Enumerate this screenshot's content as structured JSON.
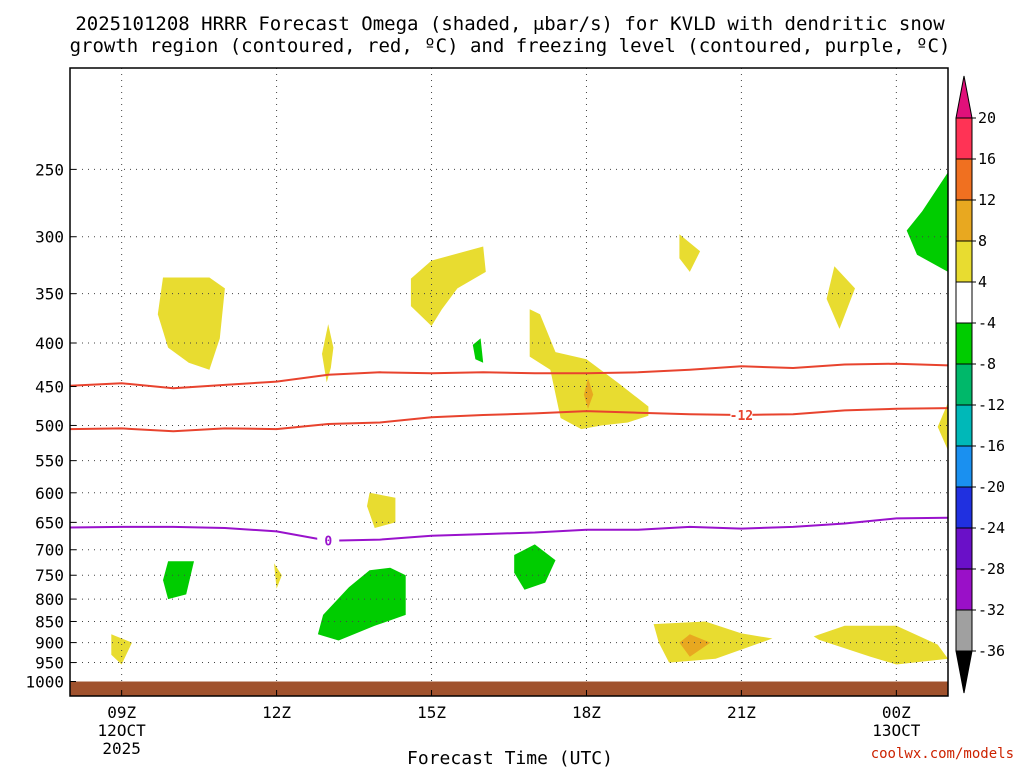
{
  "chart_data": {
    "type": "time-height contour",
    "title_line1": "2025101208 HRRR Forecast Omega (shaded, μbar/s) for KVLD with dendritic snow",
    "title_line2": "growth region (contoured, red, ºC) and freezing level (contoured, purple, ºC)",
    "xlabel": "Forecast Time (UTC)",
    "credit": "coolwx.com/models",
    "x_ticks": [
      {
        "label": "09Z",
        "sub": [
          "12OCT",
          "2025"
        ],
        "hour": 9
      },
      {
        "label": "12Z",
        "sub": [],
        "hour": 12
      },
      {
        "label": "15Z",
        "sub": [],
        "hour": 15
      },
      {
        "label": "18Z",
        "sub": [],
        "hour": 18
      },
      {
        "label": "21Z",
        "sub": [],
        "hour": 21
      },
      {
        "label": "00Z",
        "sub": [
          "13OCT"
        ],
        "hour": 24
      }
    ],
    "xlim_hours": [
      8.0,
      25.0
    ],
    "y_ticks": [
      {
        "label": "250",
        "p": 250
      },
      {
        "label": "300",
        "p": 300
      },
      {
        "label": "350",
        "p": 350
      },
      {
        "label": "400",
        "p": 400
      },
      {
        "label": "450",
        "p": 450
      },
      {
        "label": "500",
        "p": 500
      },
      {
        "label": "550",
        "p": 550
      },
      {
        "label": "600",
        "p": 600
      },
      {
        "label": "650",
        "p": 650
      },
      {
        "label": "700",
        "p": 700
      },
      {
        "label": "750",
        "p": 750
      },
      {
        "label": "800",
        "p": 800
      },
      {
        "label": "850",
        "p": 850
      },
      {
        "label": "900",
        "p": 900
      },
      {
        "label": "950",
        "p": 950
      },
      {
        "label": "1000",
        "p": 1000
      }
    ],
    "ylim_hPa": [
      190,
      1040
    ],
    "ground_hPa": 1000,
    "colorbar": {
      "labels": [
        "20",
        "16",
        "12",
        "8",
        "4",
        "-4",
        "-8",
        "-12",
        "-16",
        "-20",
        "-24",
        "-28",
        "-32",
        "-36"
      ],
      "colors": [
        "#ff3355",
        "#f07020",
        "#e8a820",
        "#e8dc30",
        "#ffffff",
        "#00cc00",
        "#00b86a",
        "#00b8b8",
        "#1a90f0",
        "#2030e0",
        "#6a10c8",
        "#9a10c8",
        "#a0a0a0"
      ],
      "top_arrow_color": "#e0107a",
      "bottom_arrow_color": "#000000"
    },
    "contours": [
      {
        "name": "dgz-top",
        "level": "-17",
        "color": "#e8432e",
        "label": "",
        "points": [
          [
            8,
            449
          ],
          [
            9,
            446
          ],
          [
            10,
            452
          ],
          [
            11,
            448
          ],
          [
            12,
            444
          ],
          [
            13,
            436
          ],
          [
            14,
            433
          ],
          [
            15,
            434
          ],
          [
            16,
            433
          ],
          [
            17,
            434
          ],
          [
            18,
            434
          ],
          [
            19,
            433
          ],
          [
            20,
            430
          ],
          [
            21,
            426
          ],
          [
            22,
            428
          ],
          [
            23,
            424
          ],
          [
            24,
            423
          ],
          [
            25,
            425
          ]
        ]
      },
      {
        "name": "dgz-bottom",
        "level": "-12",
        "color": "#e8432e",
        "label": "-12",
        "label_at": [
          21.0,
          486
        ],
        "points": [
          [
            8,
            505
          ],
          [
            9,
            504
          ],
          [
            10,
            508
          ],
          [
            11,
            504
          ],
          [
            12,
            505
          ],
          [
            13,
            498
          ],
          [
            14,
            496
          ],
          [
            15,
            489
          ],
          [
            16,
            486
          ],
          [
            17,
            484
          ],
          [
            18,
            481
          ],
          [
            19,
            483
          ],
          [
            20,
            485
          ],
          [
            21,
            486
          ],
          [
            22,
            485
          ],
          [
            23,
            480
          ],
          [
            24,
            478
          ],
          [
            25,
            477
          ]
        ]
      },
      {
        "name": "freezing-level",
        "level": "0",
        "color": "#9912cc",
        "label": "0",
        "label_at": [
          13.0,
          683
        ],
        "points": [
          [
            8,
            659
          ],
          [
            9,
            658
          ],
          [
            10,
            658
          ],
          [
            11,
            660
          ],
          [
            12,
            666
          ],
          [
            13,
            683
          ],
          [
            14,
            681
          ],
          [
            15,
            674
          ],
          [
            16,
            671
          ],
          [
            17,
            668
          ],
          [
            18,
            663
          ],
          [
            19,
            663
          ],
          [
            20,
            658
          ],
          [
            21,
            661
          ],
          [
            22,
            658
          ],
          [
            23,
            652
          ],
          [
            24,
            643
          ],
          [
            25,
            642
          ]
        ]
      }
    ],
    "omega_regions": [
      {
        "name": "yellow-blob-1",
        "value": "4 to 8",
        "color": "#e8dc30",
        "points": [
          [
            9.8,
            335
          ],
          [
            10.7,
            335
          ],
          [
            11.0,
            345
          ],
          [
            10.9,
            395
          ],
          [
            10.7,
            430
          ],
          [
            10.3,
            422
          ],
          [
            9.9,
            405
          ],
          [
            9.7,
            370
          ]
        ]
      },
      {
        "name": "yellow-blob-2",
        "value": "4 to 8",
        "color": "#e8dc30",
        "points": [
          [
            13.0,
            380
          ],
          [
            13.1,
            405
          ],
          [
            13.05,
            428
          ],
          [
            12.97,
            445
          ],
          [
            12.88,
            412
          ]
        ]
      },
      {
        "name": "yellow-blob-3",
        "value": "4 to 8",
        "color": "#e8dc30",
        "points": [
          [
            14.6,
            336
          ],
          [
            15.0,
            320
          ],
          [
            16.0,
            308
          ],
          [
            16.05,
            330
          ],
          [
            15.5,
            345
          ],
          [
            15.2,
            365
          ],
          [
            15.0,
            382
          ],
          [
            14.6,
            362
          ]
        ]
      },
      {
        "name": "yellow-blob-4",
        "value": "4 to 8",
        "color": "#e8dc30",
        "points": [
          [
            16.9,
            365
          ],
          [
            17.1,
            370
          ],
          [
            17.4,
            410
          ],
          [
            18.0,
            418
          ],
          [
            18.6,
            445
          ],
          [
            19.2,
            475
          ],
          [
            19.2,
            487
          ],
          [
            18.8,
            496
          ],
          [
            18.3,
            500
          ],
          [
            17.9,
            505
          ],
          [
            17.5,
            490
          ],
          [
            17.3,
            430
          ],
          [
            16.9,
            415
          ],
          [
            16.9,
            390
          ]
        ]
      },
      {
        "name": "yellow-blob-5",
        "value": "4 to 8",
        "color": "#e8dc30",
        "points": [
          [
            19.8,
            298
          ],
          [
            20.2,
            312
          ],
          [
            20.0,
            330
          ],
          [
            19.8,
            318
          ]
        ]
      },
      {
        "name": "yellow-blob-6",
        "value": "4 to 8",
        "color": "#e8dc30",
        "points": [
          [
            22.8,
            325
          ],
          [
            23.2,
            345
          ],
          [
            22.9,
            385
          ],
          [
            22.65,
            355
          ]
        ]
      },
      {
        "name": "yellow-blob-7",
        "value": "4 to 8",
        "color": "#e8dc30",
        "points": [
          [
            13.8,
            600
          ],
          [
            14.3,
            608
          ],
          [
            14.3,
            650
          ],
          [
            13.9,
            660
          ],
          [
            13.75,
            622
          ]
        ]
      },
      {
        "name": "yellow-blob-8",
        "value": "4 to 8",
        "color": "#e8dc30",
        "points": [
          [
            11.95,
            726
          ],
          [
            12.1,
            750
          ],
          [
            12.0,
            778
          ]
        ]
      },
      {
        "name": "yellow-blob-9",
        "value": "4 to 8",
        "color": "#e8dc30",
        "points": [
          [
            8.8,
            880
          ],
          [
            9.2,
            900
          ],
          [
            9.0,
            955
          ],
          [
            8.8,
            930
          ]
        ]
      },
      {
        "name": "yellow-blob-10",
        "value": "4 to 8",
        "color": "#e8dc30",
        "points": [
          [
            19.3,
            856
          ],
          [
            20.3,
            850
          ],
          [
            21.0,
            878
          ],
          [
            21.6,
            890
          ],
          [
            20.5,
            940
          ],
          [
            19.6,
            950
          ],
          [
            19.4,
            900
          ]
        ]
      },
      {
        "name": "yellow-blob-11",
        "value": "4 to 8",
        "color": "#e8dc30",
        "points": [
          [
            22.4,
            885
          ],
          [
            23.0,
            860
          ],
          [
            24.0,
            860
          ],
          [
            24.8,
            905
          ],
          [
            25.0,
            940
          ],
          [
            24.0,
            955
          ],
          [
            23.5,
            935
          ],
          [
            22.5,
            893
          ]
        ]
      },
      {
        "name": "yellow-blob-12",
        "value": "4 to 8",
        "color": "#e8dc30",
        "points": [
          [
            25.0,
            470
          ],
          [
            24.8,
            502
          ],
          [
            25.0,
            535
          ]
        ]
      },
      {
        "name": "orange-spot-1",
        "value": "8 to 12",
        "color": "#e8a820",
        "points": [
          [
            20.0,
            880
          ],
          [
            20.4,
            900
          ],
          [
            20.0,
            935
          ],
          [
            19.8,
            900
          ]
        ]
      },
      {
        "name": "orange-spot-2",
        "value": "8 to 12",
        "color": "#e8a820",
        "points": [
          [
            18.03,
            440
          ],
          [
            18.13,
            460
          ],
          [
            18.03,
            478
          ],
          [
            17.95,
            460
          ]
        ]
      },
      {
        "name": "green-blob-1",
        "value": "-4 to -8",
        "color": "#00cc00",
        "points": [
          [
            24.2,
            295
          ],
          [
            24.5,
            280
          ],
          [
            25.0,
            252
          ],
          [
            25.0,
            330
          ],
          [
            24.4,
            315
          ]
        ]
      },
      {
        "name": "green-blob-2",
        "value": "-4 to -8",
        "color": "#00cc00",
        "points": [
          [
            15.8,
            402
          ],
          [
            15.95,
            395
          ],
          [
            16.0,
            422
          ],
          [
            15.85,
            418
          ]
        ]
      },
      {
        "name": "green-blob-3",
        "value": "-4 to -8",
        "color": "#00cc00",
        "points": [
          [
            9.9,
            722
          ],
          [
            10.4,
            722
          ],
          [
            10.25,
            790
          ],
          [
            9.9,
            800
          ],
          [
            9.8,
            760
          ]
        ]
      },
      {
        "name": "green-blob-4",
        "value": "-4 to -8",
        "color": "#00cc00",
        "points": [
          [
            16.6,
            710
          ],
          [
            17.0,
            690
          ],
          [
            17.4,
            720
          ],
          [
            17.2,
            765
          ],
          [
            16.8,
            780
          ],
          [
            16.6,
            745
          ]
        ]
      },
      {
        "name": "green-blob-5",
        "value": "-4 to -8",
        "color": "#00cc00",
        "points": [
          [
            13.4,
            775
          ],
          [
            13.8,
            740
          ],
          [
            14.2,
            735
          ],
          [
            14.5,
            750
          ],
          [
            14.5,
            835
          ],
          [
            13.9,
            860
          ],
          [
            13.2,
            895
          ],
          [
            12.8,
            880
          ],
          [
            12.9,
            835
          ]
        ]
      }
    ]
  }
}
